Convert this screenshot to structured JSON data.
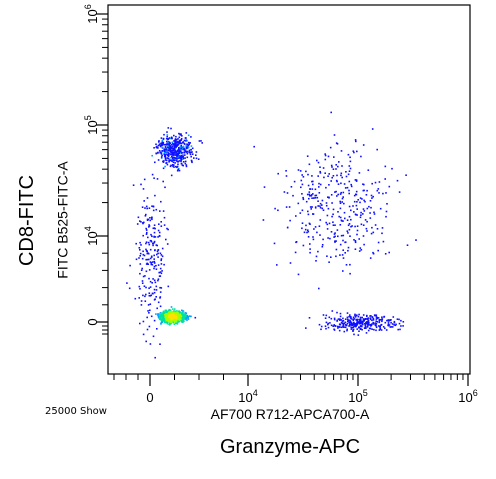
{
  "chart_data": {
    "type": "scatter",
    "subtype": "flow cytometry density dot plot",
    "x_scale": "biexponential",
    "y_scale": "biexponential",
    "x_axis": {
      "parameter_label": "AF700 R712-APCA700-A",
      "marker_label": "Granzyme-APC",
      "tick_labels": [
        "0",
        "10^4",
        "10^5",
        "10^6"
      ],
      "tick_values": [
        0,
        10000,
        100000,
        1000000
      ]
    },
    "y_axis": {
      "parameter_label": "FITC B525-FITC-A",
      "marker_label": "CD8-FITC",
      "tick_labels": [
        "0",
        "10^4",
        "10^5",
        "10^6"
      ],
      "tick_values": [
        0,
        10000,
        100000,
        1000000
      ]
    },
    "events_shown": "25000 Show",
    "grid": false,
    "legend": "none",
    "density_colors": [
      "#1010ff",
      "#00a0ff",
      "#00e0a0",
      "#a0ff00",
      "#ffe000"
    ],
    "populations": [
      {
        "name": "",
        "x_center": 0,
        "y_center": 0,
        "x_spread": 0.35,
        "y_spread": 0.18,
        "events": 1400,
        "density": "high"
      },
      {
        "name": "",
        "x_center": 0,
        "y_center": 60000,
        "x_spread": 0.3,
        "y_spread": 0.25,
        "events": 450,
        "density": "medium"
      },
      {
        "name": "",
        "x_center": 0,
        "y_center": 8000,
        "x_spread": 0.25,
        "y_spread": 1.2,
        "events": 230,
        "density": "low"
      },
      {
        "name": "",
        "x_center": 100000,
        "y_center": 0,
        "x_spread": 0.6,
        "y_spread": 0.15,
        "events": 320,
        "density": "low"
      },
      {
        "name": "",
        "x_center": 60000,
        "y_center": 20000,
        "x_spread": 0.9,
        "y_spread": 1.0,
        "events": 380,
        "density": "low"
      }
    ]
  }
}
